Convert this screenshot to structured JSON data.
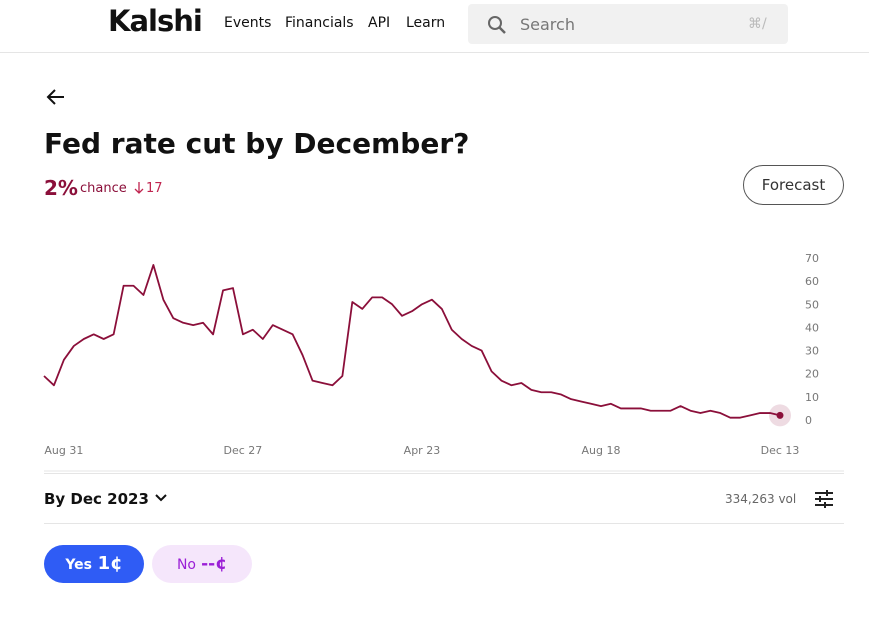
{
  "nav": {
    "logo": "Kalshi",
    "links": [
      "Events",
      "Financials",
      "API",
      "Learn"
    ],
    "search_placeholder": "Search",
    "search_shortcut": "⌘/"
  },
  "market": {
    "title": "Fed rate cut by December?",
    "chance": "2%",
    "chance_label": "chance",
    "change": "17",
    "forecast_button": "Forecast"
  },
  "chart_data": {
    "type": "line",
    "color": "#8b0f3a",
    "categories": [
      null,
      null,
      "Aug 31",
      null,
      null,
      null,
      null,
      null,
      null,
      null,
      null,
      null,
      null,
      null,
      null,
      null,
      null,
      null,
      null,
      null,
      "Dec 27",
      null,
      null,
      null,
      null,
      null,
      null,
      null,
      null,
      null,
      null,
      null,
      null,
      null,
      null,
      null,
      null,
      null,
      "Apr 23",
      null,
      null,
      null,
      null,
      null,
      null,
      null,
      null,
      null,
      null,
      null,
      null,
      null,
      null,
      null,
      null,
      null,
      "Aug 18",
      null,
      null,
      null,
      null,
      null,
      null,
      null,
      null,
      null,
      null,
      null,
      null,
      null,
      null,
      null,
      null,
      null,
      "Dec 13"
    ],
    "values": [
      19,
      15,
      26,
      32,
      35,
      37,
      35,
      37,
      58,
      58,
      54,
      67,
      52,
      44,
      42,
      41,
      42,
      37,
      56,
      57,
      37,
      39,
      35,
      41,
      39,
      37,
      28,
      17,
      16,
      15,
      19,
      51,
      48,
      53,
      53,
      50,
      45,
      47,
      50,
      52,
      48,
      39,
      35,
      32,
      30,
      21,
      17,
      15,
      16,
      13,
      12,
      12,
      11,
      9,
      8,
      7,
      6,
      7,
      5,
      5,
      5,
      4,
      4,
      4,
      6,
      4,
      3,
      4,
      3,
      1,
      1,
      2,
      3,
      3,
      2
    ],
    "ylim": [
      0,
      70
    ],
    "yticks": [
      0,
      10,
      20,
      30,
      40,
      50,
      60,
      70
    ]
  },
  "footer": {
    "period": "By Dec 2023",
    "volume": "334,263 vol",
    "yes_label": "Yes",
    "yes_price": "1¢",
    "no_label": "No",
    "no_price": "--¢"
  }
}
